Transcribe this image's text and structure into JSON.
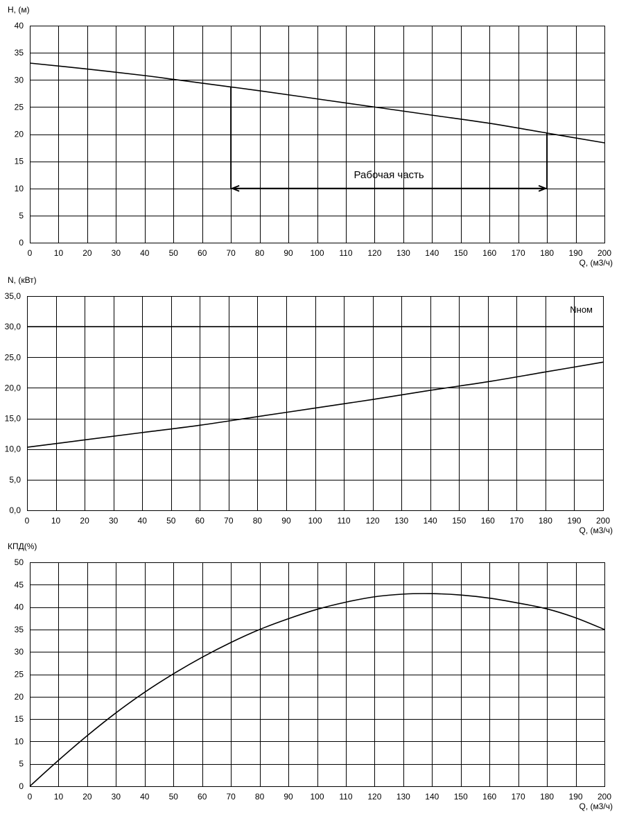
{
  "colors": {
    "background": "#ffffff",
    "ink": "#000000"
  },
  "chart_data": [
    {
      "type": "line",
      "ylabel": "H, (м)",
      "xlabel": "Q, (м3/ч)",
      "xlim": [
        0,
        200
      ],
      "xstep": 10,
      "ylim": [
        0,
        40
      ],
      "ystep": 5,
      "ydecimals": 0,
      "grid": true,
      "series": [
        {
          "x": [
            0,
            20,
            40,
            50,
            60,
            70,
            80,
            100,
            120,
            140,
            160,
            180,
            200
          ],
          "y": [
            33.1,
            32.0,
            30.8,
            30.1,
            29.4,
            28.7,
            28.0,
            26.5,
            25.0,
            23.5,
            22.0,
            20.2,
            18.4
          ]
        }
      ],
      "annotation": {
        "label": "Рабочая часть",
        "x_from": 70,
        "x_to": 180,
        "y_level": 10,
        "drop_from": [
          28.7,
          20.2
        ]
      }
    },
    {
      "type": "line",
      "ylabel": "N, (кВт)",
      "xlabel": "Q, (м3/ч)",
      "xlim": [
        0,
        200
      ],
      "xstep": 10,
      "ylim": [
        0,
        35
      ],
      "ystep": 5,
      "ydecimals": 1,
      "grid": true,
      "series": [
        {
          "x": [
            0,
            20,
            40,
            60,
            80,
            100,
            120,
            140,
            160,
            180,
            200
          ],
          "y": [
            10.3,
            11.5,
            12.7,
            13.9,
            15.3,
            16.7,
            18.1,
            19.6,
            21.0,
            22.6,
            24.2
          ]
        }
      ],
      "reference": {
        "label": "Nном",
        "y": 30.0
      }
    },
    {
      "type": "line",
      "ylabel": "КПД(%)",
      "xlabel": "Q, (м3/ч)",
      "xlim": [
        0,
        200
      ],
      "xstep": 10,
      "ylim": [
        0,
        50
      ],
      "ystep": 5,
      "ydecimals": 0,
      "grid": true,
      "series": [
        {
          "x": [
            0,
            10,
            20,
            30,
            40,
            50,
            60,
            70,
            80,
            90,
            100,
            110,
            120,
            130,
            140,
            150,
            160,
            170,
            180,
            190,
            200
          ],
          "y": [
            0,
            5.8,
            11.3,
            16.4,
            21.0,
            25.1,
            28.8,
            32.1,
            35.0,
            37.4,
            39.5,
            41.1,
            42.3,
            42.9,
            43.0,
            42.7,
            42.0,
            40.9,
            39.6,
            37.6,
            35.0
          ]
        }
      ]
    }
  ]
}
